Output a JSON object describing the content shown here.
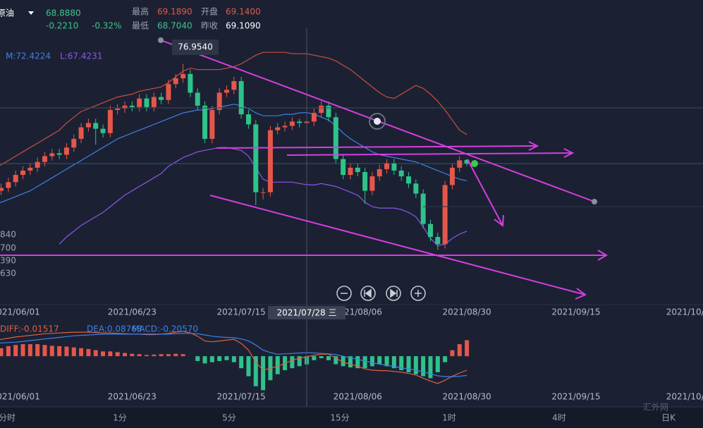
{
  "header": {
    "symbol": "原油",
    "price": "68.8880",
    "change": "-0.2210",
    "change_pct": "-0.32%",
    "high_label": "最高",
    "high": "69.1890",
    "open_label": "开盘",
    "open": "69.1400",
    "low_label": "最低",
    "low": "68.7040",
    "prev_label": "昨收",
    "prev_close": "69.1090"
  },
  "cursor": {
    "value": "76.9540",
    "date": "2021/07/28 三"
  },
  "clipped_labels": [
    "840",
    "700",
    "390",
    "630"
  ],
  "timeframes": [
    "分时",
    "1分",
    "5分",
    "15分",
    "1时",
    "4时",
    "日K"
  ],
  "watermark": "汇外网",
  "chart_data": [
    {
      "type": "candlestick",
      "up_color": "#e5574b",
      "down_color": "#2fc28a",
      "open": [
        66.7,
        67.0,
        67.2,
        67.6,
        68.1,
        68.4,
        68.6,
        69.0,
        69.4,
        69.6,
        69.5,
        70.0,
        70.6,
        71.4,
        71.7,
        71.3,
        71.0,
        72.6,
        72.7,
        72.9,
        72.8,
        73.4,
        72.8,
        73.5,
        73.3,
        74.4,
        74.8,
        75.1,
        73.8,
        72.9,
        70.6,
        72.6,
        73.8,
        74.0,
        74.6,
        72.3,
        71.6,
        66.9,
        66.9,
        71.2,
        71.4,
        71.5,
        71.8,
        71.7,
        71.8,
        72.4,
        72.9,
        72.1,
        69.2,
        68.1,
        68.6,
        68.3,
        67.0,
        68.0,
        68.5,
        68.9,
        68.4,
        68.0,
        67.5,
        66.8,
        64.7,
        63.8,
        63.3,
        67.4,
        68.6,
        69.14
      ],
      "high": [
        67.3,
        67.5,
        67.9,
        68.4,
        68.7,
        68.9,
        69.3,
        69.7,
        69.9,
        69.9,
        70.3,
        70.9,
        71.7,
        72.0,
        72.0,
        71.6,
        72.9,
        73.0,
        73.2,
        73.2,
        73.7,
        73.7,
        73.8,
        73.8,
        74.7,
        75.1,
        75.8,
        75.4,
        74.1,
        73.2,
        72.9,
        74.1,
        74.3,
        74.9,
        74.9,
        72.6,
        71.9,
        67.2,
        71.5,
        71.7,
        71.8,
        72.1,
        72.0,
        72.1,
        72.7,
        73.2,
        73.2,
        72.4,
        69.5,
        68.9,
        68.9,
        68.6,
        68.3,
        68.8,
        69.2,
        69.2,
        68.7,
        68.3,
        67.8,
        67.1,
        65.0,
        64.1,
        67.7,
        68.9,
        69.4,
        69.189
      ],
      "low": [
        66.4,
        66.7,
        66.9,
        67.3,
        67.8,
        68.1,
        68.3,
        68.7,
        69.1,
        69.2,
        69.2,
        69.7,
        70.3,
        71.1,
        70.2,
        70.7,
        70.7,
        72.3,
        72.4,
        72.5,
        72.5,
        72.5,
        72.5,
        73.0,
        73.0,
        74.1,
        74.5,
        73.5,
        72.6,
        70.3,
        70.3,
        72.3,
        73.5,
        73.7,
        72.0,
        71.3,
        66.0,
        66.4,
        66.6,
        70.9,
        71.1,
        71.2,
        71.4,
        71.4,
        71.5,
        72.1,
        71.8,
        68.9,
        67.8,
        67.8,
        68.0,
        66.1,
        66.7,
        67.7,
        68.2,
        68.1,
        67.7,
        67.2,
        66.5,
        64.4,
        63.5,
        62.9,
        63.0,
        67.1,
        68.3,
        68.704
      ],
      "close": [
        67.0,
        67.2,
        67.6,
        68.1,
        68.4,
        68.6,
        69.0,
        69.4,
        69.6,
        69.5,
        70.0,
        70.6,
        71.4,
        71.7,
        71.3,
        71.0,
        72.6,
        72.7,
        72.9,
        72.8,
        73.4,
        72.8,
        73.5,
        73.3,
        74.4,
        74.8,
        75.1,
        73.8,
        72.9,
        70.6,
        72.6,
        73.8,
        74.0,
        74.6,
        72.3,
        71.6,
        66.9,
        66.9,
        71.2,
        71.4,
        71.5,
        71.8,
        71.7,
        71.8,
        72.4,
        72.9,
        72.1,
        69.2,
        68.1,
        68.6,
        68.3,
        67.0,
        68.0,
        68.5,
        68.9,
        68.4,
        68.0,
        67.5,
        66.8,
        64.7,
        63.8,
        63.3,
        67.4,
        68.6,
        69.109,
        68.888
      ],
      "series": [
        {
          "color": "#c9503e",
          "values": [
            68.5,
            68.8,
            69.1,
            69.4,
            69.7,
            70.0,
            70.3,
            70.6,
            70.9,
            71.2,
            71.7,
            72.1,
            72.5,
            72.7,
            72.9,
            73.1,
            73.3,
            73.5,
            73.6,
            73.7,
            73.9,
            74.0,
            74.1,
            74.2,
            74.5,
            74.9,
            75.3,
            75.5,
            75.4,
            75.4,
            75.4,
            75.4,
            75.5,
            75.6,
            75.8,
            76.1,
            76.4,
            76.6,
            76.6,
            76.6,
            76.6,
            76.5,
            76.5,
            76.5,
            76.4,
            76.3,
            76.2,
            76.0,
            75.7,
            75.4,
            75.0,
            74.6,
            74.2,
            73.8,
            73.5,
            73.4,
            73.7,
            74.0,
            74.3,
            74.1,
            73.7,
            73.2,
            72.6,
            71.9,
            71.2,
            70.9
          ]
        },
        {
          "color": "#3f80e6",
          "values": [
            66.0,
            66.2,
            66.4,
            66.6,
            66.8,
            67.0,
            67.3,
            67.6,
            67.9,
            68.2,
            68.5,
            68.8,
            69.1,
            69.4,
            69.7,
            70.0,
            70.3,
            70.6,
            70.8,
            71.0,
            71.2,
            71.4,
            71.6,
            71.8,
            72.0,
            72.2,
            72.4,
            72.5,
            72.6,
            72.6,
            72.7,
            72.8,
            72.9,
            73.0,
            72.9,
            72.7,
            72.4,
            72.2,
            72.2,
            72.2,
            72.3,
            72.3,
            72.4,
            72.4224,
            72.3,
            72.1,
            71.9,
            71.5,
            71.0,
            70.6,
            70.3,
            70.0,
            69.7,
            69.5,
            69.4,
            69.3,
            69.2,
            69.1,
            69.0,
            68.8,
            68.6,
            68.4,
            68.2,
            68.0,
            67.8,
            67.7
          ]
        },
        {
          "color": "#8c58ea",
          "values": [
            null,
            null,
            null,
            null,
            null,
            null,
            null,
            null,
            null,
            63.3,
            63.8,
            64.2,
            64.6,
            64.9,
            65.2,
            65.5,
            65.9,
            66.3,
            66.7,
            67.0,
            67.3,
            67.6,
            67.9,
            68.2,
            68.7,
            69.0,
            69.3,
            69.5,
            69.7,
            69.8,
            69.9,
            70.0,
            70.0,
            69.9,
            69.8,
            69.4,
            68.6,
            67.8,
            67.6,
            67.6,
            67.6,
            67.6,
            67.5,
            67.4231,
            67.4,
            67.5,
            67.4,
            67.3,
            67.1,
            66.9,
            66.7,
            66.2,
            65.9,
            65.8,
            65.8,
            65.8,
            65.7,
            65.5,
            65.2,
            64.5,
            63.7,
            63.2,
            63.3,
            63.7,
            64.0,
            64.2
          ]
        }
      ],
      "legend": [
        "M:72.4224",
        "L:67.4231"
      ],
      "xlim": [
        0.85,
        97.45
      ],
      "ylim": [
        59.11,
        78.27
      ],
      "xticks": [
        {
          "value": 3,
          "label": "2021/06/01"
        },
        {
          "value": 19,
          "label": "2021/06/23"
        },
        {
          "value": 34,
          "label": "2021/07/15"
        },
        {
          "value": 50,
          "label": "2021/08/06"
        },
        {
          "value": 65,
          "label": "2021/08/30"
        },
        {
          "value": 80,
          "label": "2021/09/15"
        },
        {
          "value": 95,
          "label": "2021/10/"
        }
      ]
    },
    {
      "type": "macd",
      "up_color": "#e5574b",
      "down_color": "#2fc28a",
      "values": [
        0.15,
        0.2,
        0.25,
        0.28,
        0.3,
        0.3,
        0.3,
        0.28,
        0.26,
        0.25,
        0.24,
        0.22,
        0.2,
        0.18,
        0.15,
        0.12,
        0.12,
        0.1,
        0.08,
        0.06,
        0.05,
        0.03,
        0.04,
        0.05,
        0.05,
        0.06,
        0.05,
        0,
        -0.12,
        -0.18,
        -0.15,
        -0.12,
        -0.1,
        -0.15,
        -0.3,
        -0.5,
        -0.75,
        -0.85,
        -0.6,
        -0.45,
        -0.35,
        -0.3,
        -0.25,
        -0.2057,
        -0.1,
        -0.05,
        -0.1,
        -0.2,
        -0.25,
        -0.28,
        -0.3,
        -0.3,
        -0.25,
        -0.2,
        -0.25,
        -0.3,
        -0.35,
        -0.4,
        -0.45,
        -0.5,
        -0.55,
        -0.4,
        -0.15,
        0.15,
        0.3,
        0.4
      ],
      "series": [
        {
          "color": "#e0603f",
          "values": [
            0.4,
            0.42,
            0.45,
            0.48,
            0.5,
            0.52,
            0.54,
            0.56,
            0.57,
            0.58,
            0.59,
            0.6,
            0.6,
            0.6,
            0.59,
            0.58,
            0.58,
            0.57,
            0.56,
            0.55,
            0.55,
            0.54,
            0.54,
            0.55,
            0.57,
            0.6,
            0.62,
            0.58,
            0.5,
            0.38,
            0.36,
            0.38,
            0.4,
            0.42,
            0.32,
            0.15,
            -0.15,
            -0.35,
            -0.3,
            -0.25,
            -0.18,
            -0.1,
            -0.05,
            -0.01517,
            0.02,
            0.05,
            0.05,
            -0.05,
            -0.15,
            -0.2,
            -0.25,
            -0.32,
            -0.35,
            -0.36,
            -0.36,
            -0.38,
            -0.4,
            -0.43,
            -0.47,
            -0.55,
            -0.62,
            -0.68,
            -0.6,
            -0.5,
            -0.42,
            -0.35
          ]
        },
        {
          "color": "#3f80e6",
          "values": [
            0.32,
            0.33,
            0.34,
            0.35,
            0.37,
            0.39,
            0.41,
            0.43,
            0.45,
            0.47,
            0.49,
            0.51,
            0.52,
            0.53,
            0.54,
            0.55,
            0.55,
            0.55,
            0.55,
            0.55,
            0.55,
            0.55,
            0.55,
            0.55,
            0.55,
            0.56,
            0.57,
            0.57,
            0.56,
            0.53,
            0.5,
            0.48,
            0.47,
            0.46,
            0.43,
            0.38,
            0.28,
            0.15,
            0.09,
            0.05,
            0.06,
            0.07,
            0.08,
            0.08768,
            0.08,
            0.07,
            0.06,
            0.04,
            0,
            -0.04,
            -0.08,
            -0.12,
            -0.16,
            -0.2,
            -0.23,
            -0.26,
            -0.29,
            -0.32,
            -0.35,
            -0.39,
            -0.44,
            -0.49,
            -0.51,
            -0.51,
            -0.5,
            -0.48
          ]
        }
      ],
      "legend": [
        "DIFF:-0.01517",
        "DEA:0.08768",
        "MACD:-0.20570"
      ],
      "xlim": [
        0.85,
        97.45
      ],
      "ylim": [
        -0.93,
        0.83
      ],
      "xticks": [
        {
          "value": 3,
          "label": "2021/06/01"
        },
        {
          "value": 19,
          "label": "2021/06/23"
        },
        {
          "value": 34,
          "label": "2021/07/15"
        },
        {
          "value": 50,
          "label": "2021/08/06"
        },
        {
          "value": 65,
          "label": "2021/08/30"
        },
        {
          "value": 80,
          "label": "2021/09/15"
        },
        {
          "value": 95,
          "label": "2021/10/"
        }
      ]
    }
  ]
}
